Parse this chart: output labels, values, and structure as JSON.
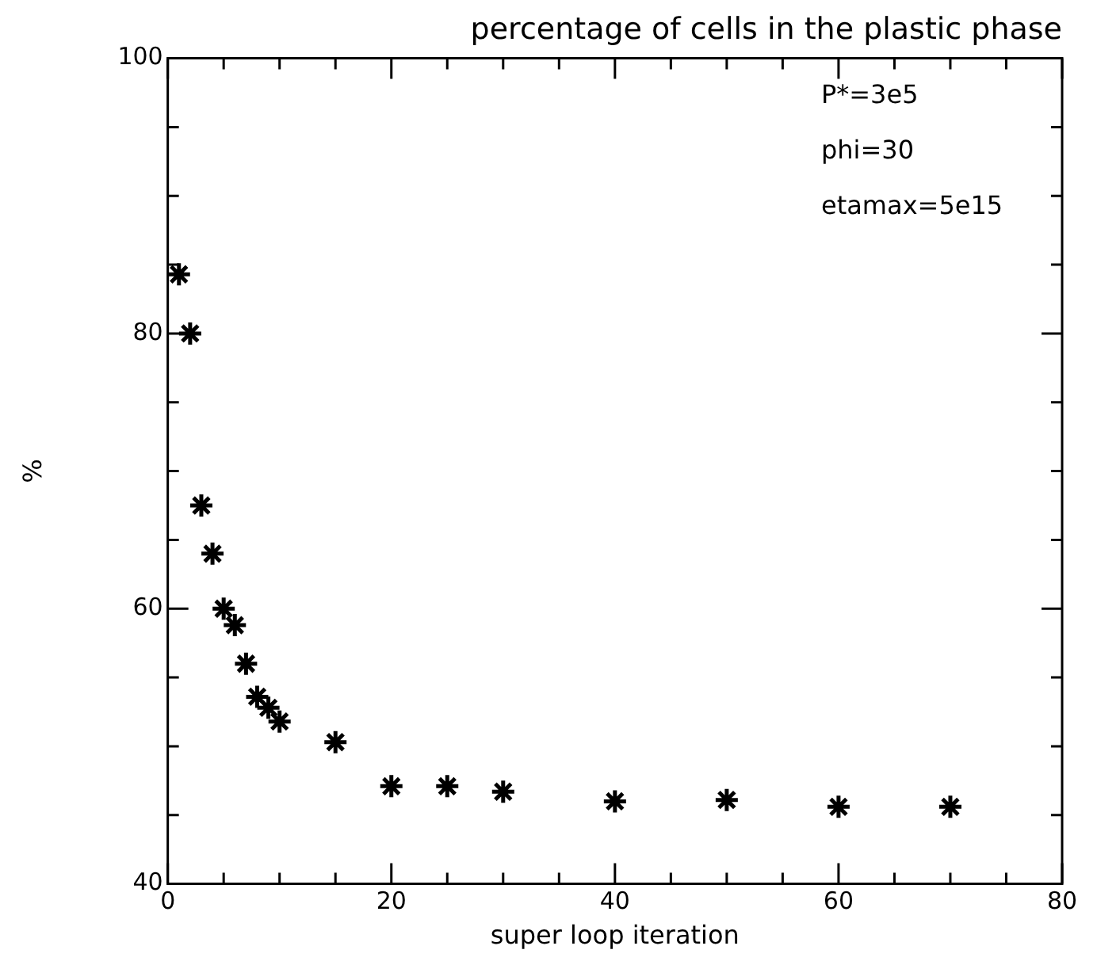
{
  "chart_data": {
    "type": "scatter",
    "title": "percentage of cells in the plastic phase",
    "xlabel": "super loop iteration",
    "ylabel": "%",
    "x": [
      1,
      2,
      3,
      4,
      5,
      6,
      7,
      8,
      9,
      10,
      15,
      20,
      25,
      30,
      40,
      50,
      60,
      70
    ],
    "series": [
      {
        "color": "#000000",
        "values": [
          84.3,
          80,
          67.5,
          64,
          60,
          58.8,
          56,
          53.6,
          52.8,
          51.8,
          50.3,
          47.1,
          47.1,
          46.7,
          46,
          46.1,
          45.6,
          45.6
        ]
      }
    ],
    "xlim": [
      0,
      80
    ],
    "ylim": [
      40,
      100
    ],
    "xticks": [
      0,
      {
        "value": 5,
        "label": null
      },
      {
        "value": 10,
        "label": null
      },
      {
        "value": 15,
        "label": null
      },
      20,
      {
        "value": 25,
        "label": null
      },
      {
        "value": 30,
        "label": null
      },
      {
        "value": 35,
        "label": null
      },
      40,
      {
        "value": 45,
        "label": null
      },
      {
        "value": 50,
        "label": null
      },
      {
        "value": 55,
        "label": null
      },
      60,
      {
        "value": 65,
        "label": null
      },
      {
        "value": 70,
        "label": null
      },
      {
        "value": 75,
        "label": null
      },
      80
    ],
    "yticks": [
      40,
      {
        "value": 45,
        "label": null
      },
      {
        "value": 50,
        "label": null
      },
      {
        "value": 55,
        "label": null
      },
      60,
      {
        "value": 65,
        "label": null
      },
      {
        "value": 70,
        "label": null
      },
      {
        "value": 75,
        "label": null
      },
      80,
      {
        "value": 85,
        "label": null
      },
      {
        "value": 90,
        "label": null
      },
      {
        "value": 95,
        "label": null
      },
      100
    ],
    "annotations": [
      "P*=3e5",
      "phi=30",
      "etamax=5e15"
    ],
    "marker": "cross",
    "grid": false,
    "legend": false
  }
}
